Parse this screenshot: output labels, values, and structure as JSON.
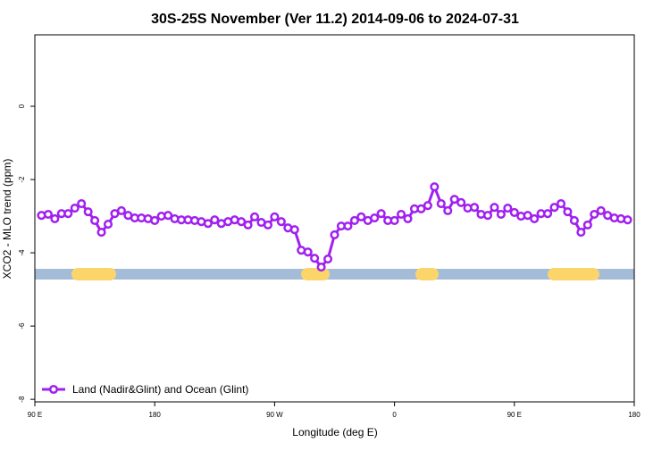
{
  "chart_data": {
    "type": "line",
    "title": "30S-25S November (Ver 11.2)   2014-09-06 to 2024-07-31",
    "xlabel": "Longitude (deg E)",
    "ylabel": "XCO2 - MLO trend (ppm)",
    "x": [
      95,
      100,
      105,
      110,
      115,
      120,
      125,
      130,
      135,
      140,
      145,
      150,
      155,
      160,
      165,
      170,
      175,
      180,
      185,
      190,
      195,
      200,
      205,
      210,
      215,
      220,
      225,
      230,
      235,
      240,
      245,
      250,
      255,
      260,
      265,
      270,
      275,
      280,
      285,
      290,
      295,
      300,
      305,
      310,
      315,
      320,
      325,
      330,
      335,
      340,
      345,
      350,
      355,
      360,
      365,
      370,
      375,
      380,
      385,
      390,
      395,
      400,
      405,
      410,
      415,
      420,
      425,
      430,
      435,
      440,
      445,
      450,
      455,
      460,
      465,
      470,
      475,
      480,
      485,
      490,
      495,
      500,
      505,
      510,
      515,
      520,
      525,
      530,
      535
    ],
    "series": [
      {
        "name": "Land (Nadir&Glint) and Ocean (Glint)",
        "color": "#a020f0",
        "values": [
          -2.98,
          -2.95,
          -3.07,
          -2.93,
          -2.93,
          -2.78,
          -2.66,
          -2.88,
          -3.12,
          -3.44,
          -3.22,
          -2.93,
          -2.85,
          -2.98,
          -3.05,
          -3.05,
          -3.07,
          -3.12,
          -3.0,
          -2.98,
          -3.07,
          -3.1,
          -3.1,
          -3.12,
          -3.15,
          -3.2,
          -3.1,
          -3.2,
          -3.15,
          -3.1,
          -3.15,
          -3.24,
          -3.02,
          -3.17,
          -3.24,
          -3.02,
          -3.15,
          -3.32,
          -3.37,
          -3.93,
          -3.98,
          -4.15,
          -4.39,
          -4.17,
          -3.51,
          -3.27,
          -3.27,
          -3.12,
          -3.02,
          -3.12,
          -3.05,
          -2.93,
          -3.12,
          -3.12,
          -2.95,
          -3.07,
          -2.8,
          -2.8,
          -2.71,
          -2.2,
          -2.66,
          -2.85,
          -2.54,
          -2.63,
          -2.78,
          -2.76,
          -2.95,
          -2.98,
          -2.76,
          -2.95,
          -2.78,
          -2.9,
          -3.0,
          -2.98,
          -3.07,
          -2.93,
          -2.93,
          -2.76,
          -2.66,
          -2.88,
          -3.12,
          -3.44,
          -3.24,
          -2.95,
          -2.85,
          -2.98,
          -3.05,
          -3.07,
          -3.1
        ]
      }
    ],
    "xlim": [
      90,
      540
    ],
    "xticks": [
      {
        "value": 90,
        "label": "90 E"
      },
      180,
      {
        "value": 270,
        "label": "90 W"
      },
      {
        "value": 360,
        "label": "0"
      },
      {
        "value": 450,
        "label": "90 E"
      },
      {
        "value": 540,
        "label": "180"
      }
    ],
    "ylim": [
      -8.07,
      1.95
    ],
    "yticks": [
      0,
      -2,
      -4,
      -6,
      -8
    ],
    "legend": "bottom-left"
  }
}
